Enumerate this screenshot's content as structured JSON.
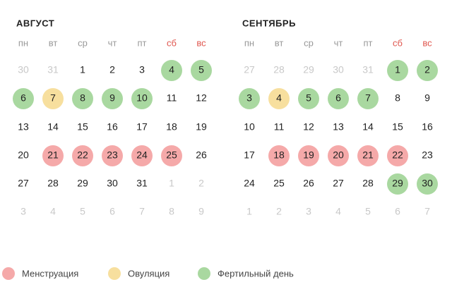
{
  "legend": [
    {
      "state": "menstruation",
      "label": "Менструация",
      "color": "#f5a9a9"
    },
    {
      "state": "ovulation",
      "label": "Овуляция",
      "color": "#f7df9e"
    },
    {
      "state": "fertile",
      "label": "Фертильный день",
      "color": "#a9d8a0"
    }
  ],
  "months": [
    {
      "title": "АВГУСТ",
      "weekdays": [
        "пн",
        "вт",
        "ср",
        "чт",
        "пт",
        "сб",
        "вс"
      ],
      "weeks": [
        [
          {
            "day": 30,
            "state": "muted"
          },
          {
            "day": 31,
            "state": "muted"
          },
          {
            "day": 1
          },
          {
            "day": 2
          },
          {
            "day": 3
          },
          {
            "day": 4,
            "state": "fertile"
          },
          {
            "day": 5,
            "state": "fertile"
          }
        ],
        [
          {
            "day": 6,
            "state": "fertile"
          },
          {
            "day": 7,
            "state": "ovulation"
          },
          {
            "day": 8,
            "state": "fertile"
          },
          {
            "day": 9,
            "state": "fertile"
          },
          {
            "day": 10,
            "state": "fertile"
          },
          {
            "day": 11
          },
          {
            "day": 12
          }
        ],
        [
          {
            "day": 13
          },
          {
            "day": 14
          },
          {
            "day": 15
          },
          {
            "day": 16
          },
          {
            "day": 17
          },
          {
            "day": 18
          },
          {
            "day": 19
          }
        ],
        [
          {
            "day": 20
          },
          {
            "day": 21,
            "state": "menstruation"
          },
          {
            "day": 22,
            "state": "menstruation"
          },
          {
            "day": 23,
            "state": "menstruation"
          },
          {
            "day": 24,
            "state": "menstruation"
          },
          {
            "day": 25,
            "state": "menstruation"
          },
          {
            "day": 26
          }
        ],
        [
          {
            "day": 27
          },
          {
            "day": 28
          },
          {
            "day": 29
          },
          {
            "day": 30
          },
          {
            "day": 31
          },
          {
            "day": 1,
            "state": "muted"
          },
          {
            "day": 2,
            "state": "muted"
          }
        ],
        [
          {
            "day": 3,
            "state": "muted"
          },
          {
            "day": 4,
            "state": "muted"
          },
          {
            "day": 5,
            "state": "muted"
          },
          {
            "day": 6,
            "state": "muted"
          },
          {
            "day": 7,
            "state": "muted"
          },
          {
            "day": 8,
            "state": "muted"
          },
          {
            "day": 9,
            "state": "muted"
          }
        ]
      ]
    },
    {
      "title": "СЕНТЯБРЬ",
      "weekdays": [
        "пн",
        "вт",
        "ср",
        "чт",
        "пт",
        "сб",
        "вс"
      ],
      "weeks": [
        [
          {
            "day": 27,
            "state": "muted"
          },
          {
            "day": 28,
            "state": "muted"
          },
          {
            "day": 29,
            "state": "muted"
          },
          {
            "day": 30,
            "state": "muted"
          },
          {
            "day": 31,
            "state": "muted"
          },
          {
            "day": 1,
            "state": "fertile"
          },
          {
            "day": 2,
            "state": "fertile"
          }
        ],
        [
          {
            "day": 3,
            "state": "fertile"
          },
          {
            "day": 4,
            "state": "ovulation"
          },
          {
            "day": 5,
            "state": "fertile"
          },
          {
            "day": 6,
            "state": "fertile"
          },
          {
            "day": 7,
            "state": "fertile"
          },
          {
            "day": 8
          },
          {
            "day": 9
          }
        ],
        [
          {
            "day": 10
          },
          {
            "day": 11
          },
          {
            "day": 12
          },
          {
            "day": 13
          },
          {
            "day": 14
          },
          {
            "day": 15
          },
          {
            "day": 16
          }
        ],
        [
          {
            "day": 17
          },
          {
            "day": 18,
            "state": "menstruation"
          },
          {
            "day": 19,
            "state": "menstruation"
          },
          {
            "day": 20,
            "state": "menstruation"
          },
          {
            "day": 21,
            "state": "menstruation"
          },
          {
            "day": 22,
            "state": "menstruation"
          },
          {
            "day": 23
          }
        ],
        [
          {
            "day": 24
          },
          {
            "day": 25
          },
          {
            "day": 26
          },
          {
            "day": 27
          },
          {
            "day": 28
          },
          {
            "day": 29,
            "state": "fertile"
          },
          {
            "day": 30,
            "state": "fertile"
          }
        ],
        [
          {
            "day": 1,
            "state": "muted"
          },
          {
            "day": 2,
            "state": "muted"
          },
          {
            "day": 3,
            "state": "muted"
          },
          {
            "day": 4,
            "state": "muted"
          },
          {
            "day": 5,
            "state": "muted"
          },
          {
            "day": 6,
            "state": "muted"
          },
          {
            "day": 7,
            "state": "muted"
          }
        ]
      ]
    }
  ]
}
